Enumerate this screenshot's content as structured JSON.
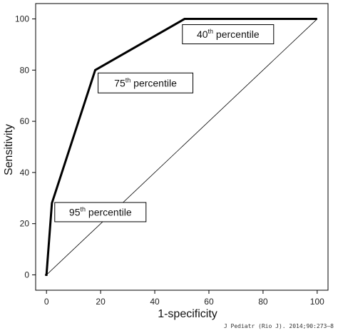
{
  "chart_data": {
    "type": "line",
    "xlabel": "1-specificity",
    "ylabel": "Sensitivity",
    "xlim": [
      -4,
      104
    ],
    "ylim": [
      -6,
      106
    ],
    "xticks": [
      0,
      20,
      40,
      60,
      80,
      100
    ],
    "yticks": [
      0,
      20,
      40,
      60,
      80,
      100
    ],
    "grid": false,
    "series": [
      {
        "role": "roc-curve",
        "x": [
          0,
          2,
          18,
          51,
          100
        ],
        "y": [
          0,
          28,
          80,
          100,
          100
        ]
      },
      {
        "role": "reference-line",
        "x": [
          0,
          100
        ],
        "y": [
          0,
          100
        ]
      }
    ],
    "annotations": [
      {
        "number": "40",
        "sup": "th",
        "text": " percentile",
        "point": [
          51,
          100
        ]
      },
      {
        "number": "75",
        "sup": "th",
        "text": " percentile",
        "point": [
          18,
          80
        ]
      },
      {
        "number": "95",
        "sup": "th",
        "text": " percentile",
        "point": [
          2,
          28
        ]
      }
    ],
    "credit": "J Pediatr (Rio J). 2014;90:273–8"
  }
}
